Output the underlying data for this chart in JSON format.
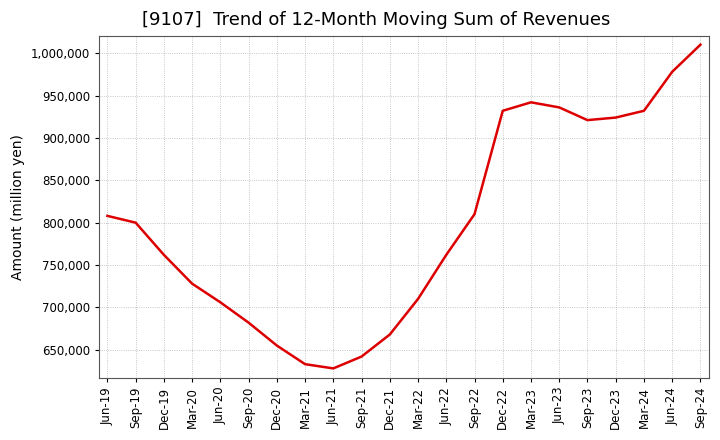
{
  "title": "[9107]  Trend of 12-Month Moving Sum of Revenues",
  "ylabel": "Amount (million yen)",
  "line_color": "#dd0000",
  "line_width": 1.8,
  "background_color": "#ffffff",
  "grid_color": "#999999",
  "tick_labels": [
    "Jun-19",
    "Sep-19",
    "Dec-19",
    "Mar-20",
    "Jun-20",
    "Sep-20",
    "Dec-20",
    "Mar-21",
    "Jun-21",
    "Sep-21",
    "Dec-21",
    "Mar-22",
    "Jun-22",
    "Sep-22",
    "Dec-22",
    "Mar-23",
    "Jun-23",
    "Sep-23",
    "Dec-23",
    "Mar-24",
    "Jun-24",
    "Sep-24"
  ],
  "values": [
    808000,
    800000,
    762000,
    728000,
    706000,
    682000,
    655000,
    633000,
    628000,
    642000,
    668000,
    710000,
    762000,
    810000,
    932000,
    942000,
    936000,
    921000,
    924000,
    932000,
    978000,
    1010000
  ],
  "ylim": [
    617000,
    1020000
  ],
  "yticks": [
    650000,
    700000,
    750000,
    800000,
    850000,
    900000,
    950000,
    1000000
  ],
  "title_fontsize": 13,
  "axis_label_fontsize": 10,
  "tick_fontsize": 8.5
}
